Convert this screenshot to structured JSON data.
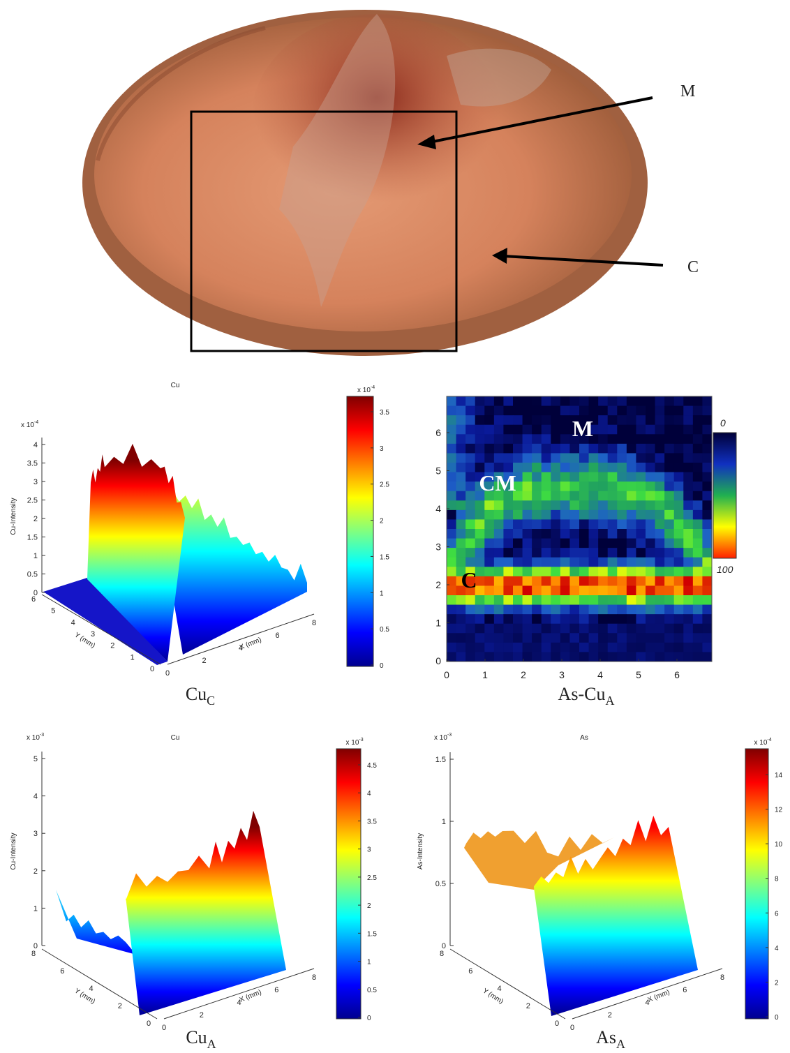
{
  "photo": {
    "labels": [
      "M",
      "C"
    ]
  },
  "panels": [
    {
      "title": "Cu",
      "z_exponent": {
        "base": "x 10",
        "sup": "-4"
      },
      "z_label": "Cu-Intensity",
      "z_ticks": [
        "0",
        "0.5",
        "1",
        "1.5",
        "2",
        "2.5",
        "3",
        "3.5",
        "4"
      ],
      "y_label": "Y (mm)",
      "y_ticks": [
        "6",
        "5",
        "4",
        "3",
        "2",
        "1",
        "0"
      ],
      "x_label": "X (mm)",
      "x_ticks": [
        "0",
        "2",
        "4",
        "6",
        "8"
      ],
      "colorbar_exponent": {
        "base": "x 10",
        "sup": "-4"
      },
      "colorbar_ticks": [
        "0",
        "0.5",
        "1",
        "1.5",
        "2",
        "2.5",
        "3",
        "3.5"
      ],
      "caption": {
        "base": "Cu",
        "sub": "C"
      }
    },
    {
      "title": "Cu",
      "z_exponent": {
        "base": "x 10",
        "sup": "-3"
      },
      "z_label": "Cu-Intensity",
      "z_ticks": [
        "0",
        "1",
        "2",
        "3",
        "4",
        "5"
      ],
      "y_label": "Y (mm)",
      "y_ticks": [
        "8",
        "6",
        "4",
        "2",
        "0"
      ],
      "x_label": "X (mm)",
      "x_ticks": [
        "0",
        "2",
        "4",
        "6",
        "8"
      ],
      "colorbar_exponent": {
        "base": "x 10",
        "sup": "-3"
      },
      "colorbar_ticks": [
        "0",
        "0.5",
        "1",
        "1.5",
        "2",
        "2.5",
        "3",
        "3.5",
        "4",
        "4.5"
      ],
      "caption": {
        "base": "Cu",
        "sub": "A"
      }
    },
    {
      "title": "As",
      "z_exponent": {
        "base": "x 10",
        "sup": "-3"
      },
      "z_label": "As-Intensity",
      "z_ticks": [
        "0",
        "0.5",
        "1",
        "1.5"
      ],
      "y_label": "Y (mm)",
      "y_ticks": [
        "8",
        "6",
        "4",
        "2",
        "0"
      ],
      "x_label": "X (mm)",
      "x_ticks": [
        "0",
        "2",
        "4",
        "6",
        "8"
      ],
      "colorbar_exponent": {
        "base": "x 10",
        "sup": "-4"
      },
      "colorbar_ticks": [
        "0",
        "2",
        "4",
        "6",
        "8",
        "10",
        "12",
        "14"
      ],
      "caption": {
        "base": "As",
        "sub": "A"
      }
    }
  ],
  "heatmap": {
    "x_ticks": [
      "0",
      "1",
      "2",
      "3",
      "4",
      "5",
      "6"
    ],
    "y_ticks": [
      "0",
      "1",
      "2",
      "3",
      "4",
      "5",
      "6"
    ],
    "regions": [
      "M",
      "CM",
      "C"
    ],
    "colorbar_ticks": [
      "0",
      "100"
    ],
    "caption": {
      "base": "As-Cu",
      "sub": "A"
    }
  }
}
